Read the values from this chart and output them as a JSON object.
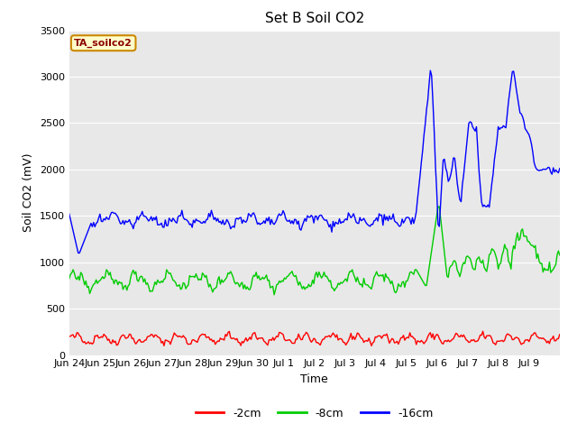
{
  "title": "Set B Soil CO2",
  "ylabel": "Soil CO2 (mV)",
  "xlabel": "Time",
  "annotation": "TA_soilco2",
  "legend_labels": [
    "-2cm",
    "-8cm",
    "-16cm"
  ],
  "legend_colors": [
    "#ff0000",
    "#00cc00",
    "#0000ff"
  ],
  "ylim": [
    0,
    3500
  ],
  "line_width": 1.0,
  "tick_dates": [
    "Jun 24",
    "Jun 25",
    "Jun 26",
    "Jun 27",
    "Jun 28",
    "Jun 29",
    "Jun 30",
    "Jul 1",
    "Jul 2",
    "Jul 3",
    "Jul 4",
    "Jul 5",
    "Jul 6",
    "Jul 7",
    "Jul 8",
    "Jul 9"
  ],
  "n_points": 384,
  "red_base": 175,
  "green_base": 800,
  "blue_base": 1450
}
